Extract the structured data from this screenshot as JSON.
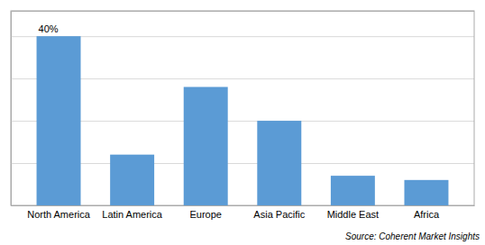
{
  "chart_data": {
    "type": "bar",
    "categories": [
      "North America",
      "Latin America",
      "Europe",
      "Asia Pacific",
      "Middle East",
      "Africa"
    ],
    "values": [
      40,
      12,
      28,
      20,
      7,
      6
    ],
    "color": "#5B9BD5",
    "ylim": [
      0,
      46
    ],
    "yticks": [
      0,
      10,
      20,
      30,
      40
    ],
    "grid": true,
    "tick_labels": "x",
    "annotations": [
      {
        "text": "40%",
        "category": "North America"
      }
    ],
    "source": "Source: Coherent Market Insights"
  }
}
